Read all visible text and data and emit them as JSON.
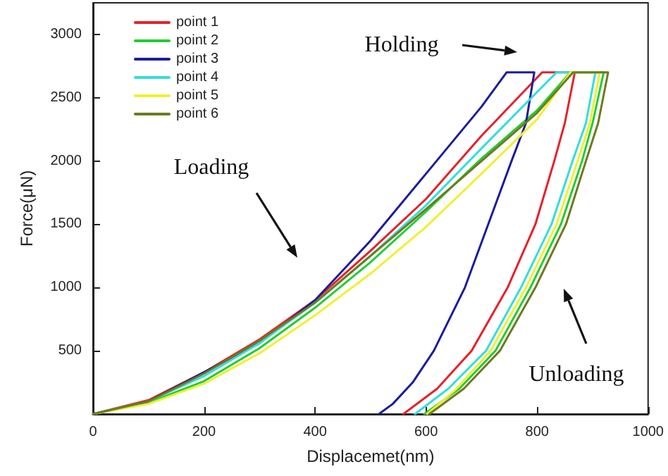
{
  "chart_data": {
    "type": "line",
    "xlabel": "Displacemet(nm)",
    "ylabel": "Force(μN)",
    "xlim": [
      0,
      1000
    ],
    "ylim": [
      0,
      3250
    ],
    "xticks": [
      0,
      200,
      400,
      600,
      800,
      1000
    ],
    "yticks": [
      500,
      1000,
      1500,
      2000,
      2500,
      3000
    ],
    "grid": false,
    "legend": "top left",
    "marker": "none",
    "line_style": "solid",
    "annotations": [
      "Holding",
      "Loading",
      "Unloading"
    ],
    "series": [
      {
        "name": "point 1",
        "color": "#e8202a",
        "x": [
          0,
          100,
          200,
          300,
          400,
          500,
          600,
          700,
          809,
          868,
          850,
          831,
          797,
          747,
          682,
          620,
          559
        ],
        "values": [
          0,
          110,
          330,
          590,
          900,
          1290,
          1700,
          2200,
          2700,
          2700,
          2300,
          2000,
          1500,
          1000,
          500,
          200,
          0
        ]
      },
      {
        "name": "point 2",
        "color": "#22cc33",
        "x": [
          0,
          100,
          200,
          300,
          400,
          500,
          600,
          700,
          800,
          860,
          920,
          900,
          881,
          843,
          788,
          725,
          660,
          597
        ],
        "values": [
          0,
          90,
          260,
          520,
          840,
          1200,
          1600,
          2020,
          2400,
          2700,
          2700,
          2300,
          2000,
          1500,
          1000,
          500,
          200,
          0
        ]
      },
      {
        "name": "point 3",
        "color": "#1c1c9c",
        "x": [
          0,
          100,
          200,
          300,
          400,
          500,
          600,
          700,
          745,
          795,
          780,
          754,
          712,
          670,
          614,
          576,
          540,
          515
        ],
        "values": [
          0,
          100,
          330,
          560,
          900,
          1370,
          1900,
          2430,
          2700,
          2700,
          2300,
          2000,
          1500,
          1000,
          500,
          250,
          80,
          0
        ]
      },
      {
        "name": "point 4",
        "color": "#33dddd",
        "x": [
          0,
          100,
          200,
          300,
          400,
          500,
          600,
          700,
          835,
          905,
          888,
          864,
          826,
          771,
          708,
          640,
          580
        ],
        "values": [
          0,
          100,
          300,
          560,
          880,
          1250,
          1650,
          2100,
          2700,
          2700,
          2300,
          2000,
          1500,
          1000,
          500,
          200,
          0
        ]
      },
      {
        "name": "point 5",
        "color": "#f0f030",
        "x": [
          0,
          100,
          200,
          300,
          400,
          500,
          600,
          700,
          800,
          860,
          913,
          895,
          873,
          835,
          780,
          716,
          655,
          602
        ],
        "values": [
          0,
          80,
          240,
          480,
          780,
          1110,
          1480,
          1900,
          2330,
          2700,
          2700,
          2300,
          2000,
          1500,
          1000,
          500,
          200,
          0
        ]
      },
      {
        "name": "point 6",
        "color": "#6e7a1e",
        "x": [
          0,
          100,
          200,
          300,
          400,
          500,
          600,
          700,
          800,
          865,
          928,
          910,
          888,
          852,
          797,
          733,
          668,
          606
        ],
        "values": [
          0,
          100,
          320,
          580,
          880,
          1250,
          1620,
          2000,
          2380,
          2700,
          2700,
          2300,
          2000,
          1500,
          1000,
          500,
          200,
          0
        ]
      }
    ]
  }
}
